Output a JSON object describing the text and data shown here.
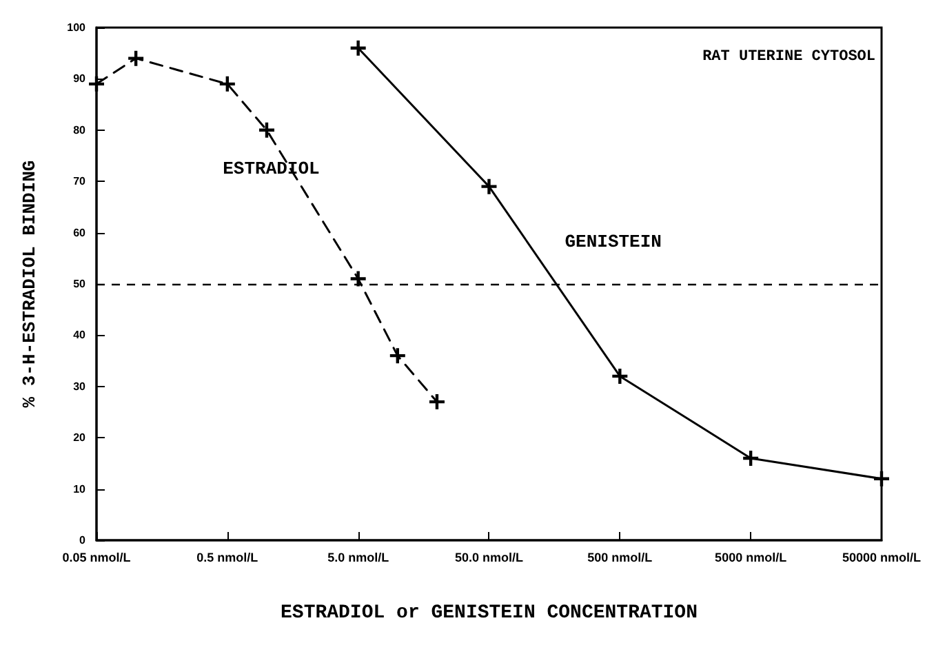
{
  "chart_data": {
    "type": "line",
    "xlabel": "ESTRADIOL or GENISTEIN CONCENTRATION",
    "ylabel": "% 3-H-ESTRADIOL BINDING",
    "log": "x",
    "xlim": [
      0.05,
      50000
    ],
    "xticks": [
      {
        "value": 0.05,
        "label": "0.05 nmol/L"
      },
      {
        "value": 0.5,
        "label": "0.5 nmol/L"
      },
      {
        "value": 5,
        "label": "5.0 nmol/L"
      },
      {
        "value": 50,
        "label": "50.0 nmol/L"
      },
      {
        "value": 500,
        "label": "500 nmol/L"
      },
      {
        "value": 5000,
        "label": "5000 nmol/L"
      },
      {
        "value": 50000,
        "label": "50000 nmol/L"
      }
    ],
    "ylim": [
      0,
      100
    ],
    "yticks": [
      0,
      10,
      20,
      30,
      40,
      50,
      60,
      70,
      80,
      90,
      100
    ],
    "grid": false,
    "legend": false,
    "marker": "cross",
    "series": [
      {
        "name": "ESTRADIOL",
        "color": "#000000",
        "line_style": "dashed",
        "x": [
          0.05,
          0.1,
          0.5,
          1,
          5,
          10,
          20
        ],
        "values": [
          89,
          94,
          89,
          80,
          51,
          36,
          27
        ]
      },
      {
        "name": "GENISTEIN",
        "color": "#000000",
        "line_style": "solid",
        "x": [
          5,
          50,
          500,
          5000,
          50000
        ],
        "values": [
          96,
          69,
          32,
          16,
          12
        ]
      }
    ],
    "ref_lines": [
      {
        "axis": "y",
        "value": 50,
        "label": null,
        "color": "#000000",
        "line_style": "dashed"
      }
    ],
    "annotations": [
      "RAT UTERINE CYTOSOL"
    ]
  }
}
